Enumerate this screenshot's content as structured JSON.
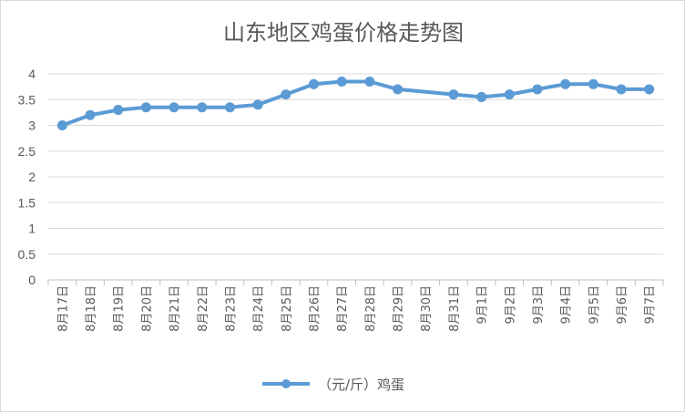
{
  "chart_data": {
    "type": "line",
    "title": "山东地区鸡蛋价格走势图",
    "xlabel": "",
    "ylabel": "",
    "ylim": [
      0,
      4
    ],
    "yticks": [
      "0",
      "0.5",
      "1",
      "1.5",
      "2",
      "2.5",
      "3",
      "3.5",
      "4"
    ],
    "grid": "horizontal",
    "legend_position": "bottom",
    "categories": [
      "8月17日",
      "8月18日",
      "8月19日",
      "8月20日",
      "8月21日",
      "8月22日",
      "8月23日",
      "8月24日",
      "8月25日",
      "8月26日",
      "8月27日",
      "8月28日",
      "8月29日",
      "8月30日",
      "8月31日",
      "9月1日",
      "9月2日",
      "9月3日",
      "9月4日",
      "9月5日",
      "9月6日",
      "9月7日"
    ],
    "series": [
      {
        "name": "（元/斤）鸡蛋",
        "color": "#5b9bd5",
        "values": [
          3.0,
          3.2,
          3.3,
          3.35,
          3.35,
          3.35,
          3.35,
          3.4,
          3.6,
          3.8,
          3.85,
          3.85,
          3.7,
          null,
          3.6,
          3.55,
          3.6,
          3.7,
          3.8,
          3.8,
          3.7,
          3.7
        ]
      }
    ]
  }
}
